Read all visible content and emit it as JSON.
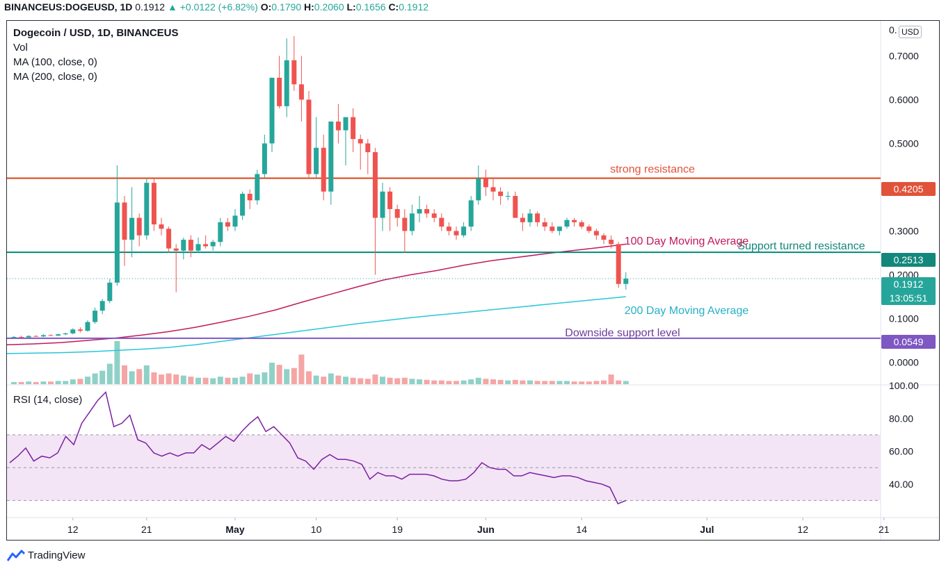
{
  "header": {
    "symbol": "BINANCEUS:DOGEUSD,",
    "interval": "1D",
    "price": "0.1912",
    "change": "+0.0122 (+6.82%)",
    "o_label": "O:",
    "o_value": "0.1790",
    "h_label": "H:",
    "h_value": "0.2060",
    "l_label": "L:",
    "l_value": "0.1656",
    "c_label": "C:",
    "c_value": "0.1912"
  },
  "legend": {
    "title": "Dogecoin / USD, 1D, BINANCEUS",
    "vol": "Vol",
    "ma100": "MA (100, close, 0)",
    "ma200": "MA (200, close, 0)",
    "rsi": "RSI (14, close)"
  },
  "currency_label": "USD",
  "price_tags": {
    "resistance": "0.4205",
    "support_resistance": "0.2513",
    "current": "0.1912",
    "countdown": "13:05:51",
    "downside": "0.0549"
  },
  "footer": {
    "brand": "TradingView"
  },
  "colors": {
    "up": "#26a69a",
    "down": "#ef5350",
    "ma100": "#c2185b",
    "ma200": "#26c6da",
    "resistance": "#d84315",
    "support": "#00897b",
    "downside": "#7e57c2",
    "rsi_line": "#7b1fa2",
    "rsi_band": "#f3e5f5"
  },
  "chart_data": [
    {
      "type": "candlestick",
      "title": "Dogecoin / USD, 1D, BINANCEUS",
      "ylim": [
        -0.05,
        0.78
      ],
      "y_ticks": [
        "0.7000",
        "0.6000",
        "0.5000",
        "0.4000",
        "0.3000",
        "0.2000",
        "0.1000",
        "0.0000"
      ],
      "x_ticks": [
        "12",
        "21",
        "May",
        "10",
        "19",
        "Jun",
        "14",
        "Jul",
        "12",
        "21"
      ],
      "candles": [
        [
          0.056,
          0.06,
          0.055,
          0.058
        ],
        [
          0.058,
          0.061,
          0.056,
          0.057
        ],
        [
          0.057,
          0.062,
          0.056,
          0.06
        ],
        [
          0.06,
          0.062,
          0.058,
          0.059
        ],
        [
          0.059,
          0.064,
          0.058,
          0.062
        ],
        [
          0.062,
          0.064,
          0.06,
          0.061
        ],
        [
          0.061,
          0.065,
          0.06,
          0.064
        ],
        [
          0.064,
          0.068,
          0.062,
          0.066
        ],
        [
          0.066,
          0.078,
          0.064,
          0.075
        ],
        [
          0.075,
          0.08,
          0.068,
          0.072
        ],
        [
          0.072,
          0.096,
          0.07,
          0.092
        ],
        [
          0.092,
          0.125,
          0.088,
          0.118
        ],
        [
          0.118,
          0.145,
          0.11,
          0.14
        ],
        [
          0.14,
          0.19,
          0.135,
          0.182
        ],
        [
          0.182,
          0.45,
          0.175,
          0.365
        ],
        [
          0.365,
          0.38,
          0.22,
          0.28
        ],
        [
          0.28,
          0.4,
          0.24,
          0.33
        ],
        [
          0.33,
          0.34,
          0.265,
          0.29
        ],
        [
          0.29,
          0.42,
          0.28,
          0.41
        ],
        [
          0.41,
          0.42,
          0.3,
          0.315
        ],
        [
          0.315,
          0.33,
          0.29,
          0.305
        ],
        [
          0.305,
          0.31,
          0.25,
          0.26
        ],
        [
          0.26,
          0.27,
          0.16,
          0.255
        ],
        [
          0.255,
          0.285,
          0.235,
          0.28
        ],
        [
          0.28,
          0.29,
          0.24,
          0.255
        ],
        [
          0.255,
          0.285,
          0.25,
          0.27
        ],
        [
          0.27,
          0.29,
          0.26,
          0.265
        ],
        [
          0.265,
          0.28,
          0.255,
          0.275
        ],
        [
          0.275,
          0.33,
          0.265,
          0.32
        ],
        [
          0.32,
          0.33,
          0.3,
          0.31
        ],
        [
          0.31,
          0.35,
          0.3,
          0.335
        ],
        [
          0.335,
          0.39,
          0.325,
          0.385
        ],
        [
          0.385,
          0.395,
          0.35,
          0.37
        ],
        [
          0.37,
          0.44,
          0.36,
          0.43
        ],
        [
          0.43,
          0.52,
          0.42,
          0.5
        ],
        [
          0.5,
          0.65,
          0.48,
          0.65
        ],
        [
          0.65,
          0.7,
          0.58,
          0.585
        ],
        [
          0.585,
          0.74,
          0.56,
          0.69
        ],
        [
          0.69,
          0.745,
          0.62,
          0.635
        ],
        [
          0.635,
          0.7,
          0.55,
          0.6
        ],
        [
          0.6,
          0.62,
          0.42,
          0.43
        ],
        [
          0.43,
          0.56,
          0.42,
          0.49
        ],
        [
          0.49,
          0.52,
          0.37,
          0.39
        ],
        [
          0.39,
          0.55,
          0.36,
          0.55
        ],
        [
          0.55,
          0.59,
          0.5,
          0.53
        ],
        [
          0.53,
          0.56,
          0.45,
          0.56
        ],
        [
          0.56,
          0.58,
          0.48,
          0.51
        ],
        [
          0.51,
          0.52,
          0.44,
          0.5
        ],
        [
          0.5,
          0.51,
          0.43,
          0.48
        ],
        [
          0.48,
          0.49,
          0.2,
          0.33
        ],
        [
          0.33,
          0.41,
          0.3,
          0.39
        ],
        [
          0.39,
          0.4,
          0.3,
          0.35
        ],
        [
          0.35,
          0.36,
          0.31,
          0.33
        ],
        [
          0.33,
          0.35,
          0.25,
          0.3
        ],
        [
          0.3,
          0.36,
          0.29,
          0.34
        ],
        [
          0.34,
          0.38,
          0.32,
          0.35
        ],
        [
          0.35,
          0.36,
          0.33,
          0.34
        ],
        [
          0.34,
          0.35,
          0.32,
          0.33
        ],
        [
          0.33,
          0.34,
          0.3,
          0.31
        ],
        [
          0.31,
          0.32,
          0.29,
          0.3
        ],
        [
          0.3,
          0.31,
          0.28,
          0.29
        ],
        [
          0.29,
          0.32,
          0.285,
          0.31
        ],
        [
          0.31,
          0.38,
          0.3,
          0.37
        ],
        [
          0.37,
          0.45,
          0.36,
          0.42
        ],
        [
          0.42,
          0.44,
          0.38,
          0.4
        ],
        [
          0.4,
          0.42,
          0.37,
          0.39
        ],
        [
          0.39,
          0.4,
          0.36,
          0.38
        ],
        [
          0.38,
          0.39,
          0.37,
          0.38
        ],
        [
          0.38,
          0.39,
          0.33,
          0.33
        ],
        [
          0.33,
          0.34,
          0.3,
          0.32
        ],
        [
          0.32,
          0.35,
          0.31,
          0.34
        ],
        [
          0.34,
          0.345,
          0.31,
          0.32
        ],
        [
          0.32,
          0.33,
          0.3,
          0.31
        ],
        [
          0.31,
          0.32,
          0.295,
          0.3
        ],
        [
          0.3,
          0.31,
          0.29,
          0.31
        ],
        [
          0.31,
          0.33,
          0.305,
          0.325
        ],
        [
          0.325,
          0.33,
          0.31,
          0.32
        ],
        [
          0.32,
          0.325,
          0.305,
          0.31
        ],
        [
          0.31,
          0.315,
          0.295,
          0.3
        ],
        [
          0.3,
          0.305,
          0.28,
          0.29
        ],
        [
          0.29,
          0.295,
          0.27,
          0.28
        ],
        [
          0.28,
          0.29,
          0.26,
          0.27
        ],
        [
          0.27,
          0.275,
          0.17,
          0.179
        ],
        [
          0.179,
          0.206,
          0.166,
          0.191
        ]
      ],
      "volumes": [
        4,
        4,
        5,
        4,
        5,
        5,
        6,
        6,
        9,
        10,
        14,
        20,
        25,
        38,
        80,
        35,
        24,
        28,
        35,
        22,
        18,
        20,
        18,
        16,
        14,
        12,
        12,
        11,
        14,
        12,
        12,
        14,
        20,
        18,
        22,
        40,
        36,
        28,
        30,
        55,
        24,
        16,
        14,
        20,
        16,
        14,
        12,
        11,
        10,
        18,
        14,
        12,
        11,
        12,
        10,
        9,
        8,
        7,
        7,
        6,
        6,
        7,
        9,
        12,
        10,
        9,
        8,
        7,
        8,
        7,
        7,
        6,
        6,
        6,
        6,
        6,
        5,
        5,
        5,
        6,
        7,
        18,
        7,
        6
      ],
      "ma100": {
        "start": 0.04,
        "values": [
          0.04,
          0.042,
          0.045,
          0.05,
          0.055,
          0.062,
          0.07,
          0.08,
          0.092,
          0.105,
          0.12,
          0.138,
          0.155,
          0.172,
          0.188,
          0.2,
          0.21,
          0.222,
          0.232,
          0.24,
          0.248,
          0.255,
          0.262,
          0.27
        ]
      },
      "ma200": {
        "values": [
          0.02,
          0.021,
          0.022,
          0.024,
          0.027,
          0.03,
          0.034,
          0.04,
          0.048,
          0.056,
          0.064,
          0.072,
          0.08,
          0.088,
          0.095,
          0.102,
          0.108,
          0.114,
          0.12,
          0.126,
          0.132,
          0.138,
          0.144,
          0.15
        ]
      },
      "levels": [
        {
          "value": 0.4205,
          "label": "strong resistance"
        },
        {
          "value": 0.2513,
          "label": "Support turned resistance"
        },
        {
          "value": 0.0549,
          "label": "Downside support level"
        }
      ],
      "annotations": [
        "100 Day Moving Average",
        "200 Day Moving Average"
      ]
    },
    {
      "type": "line",
      "title": "RSI (14, close)",
      "ylim": [
        20,
        100
      ],
      "y_ticks": [
        "100.00",
        "80.00",
        "60.00",
        "40.00"
      ],
      "band": [
        30,
        70
      ],
      "values": [
        53,
        57,
        62,
        54,
        57,
        56,
        59,
        69,
        64,
        77,
        84,
        91,
        96,
        75,
        77,
        82,
        67,
        65,
        59,
        57,
        59,
        57,
        59,
        59,
        64,
        61,
        65,
        69,
        66,
        72,
        77,
        81,
        72,
        75,
        70,
        65,
        56,
        54,
        49,
        55,
        58,
        55,
        55,
        54,
        52,
        43,
        47,
        45,
        45,
        43,
        46,
        46,
        46,
        45,
        43,
        42,
        42,
        43,
        47,
        53,
        50,
        49,
        49,
        45,
        45,
        47,
        46,
        45,
        44,
        45,
        45,
        44,
        42,
        41,
        40,
        38,
        28,
        30
      ]
    }
  ]
}
